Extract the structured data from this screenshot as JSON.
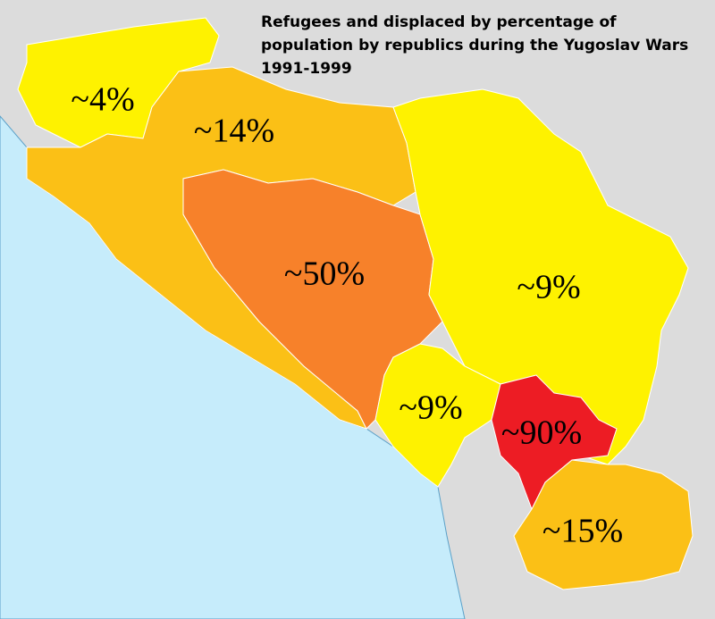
{
  "title": "Refugees and displaced by percentage of population by republics during the Yugoslav Wars 1991-1999",
  "regions": [
    {
      "label": "~4%",
      "color": "#fef200"
    },
    {
      "label": "~14%",
      "color": "#fbc016"
    },
    {
      "label": "~50%",
      "color": "#f7812a"
    },
    {
      "label": "~9%",
      "color": "#fef200"
    },
    {
      "label": "~9%",
      "color": "#fef200"
    },
    {
      "label": "~90%",
      "color": "#ed1c24"
    },
    {
      "label": "~15%",
      "color": "#fbc016"
    }
  ]
}
